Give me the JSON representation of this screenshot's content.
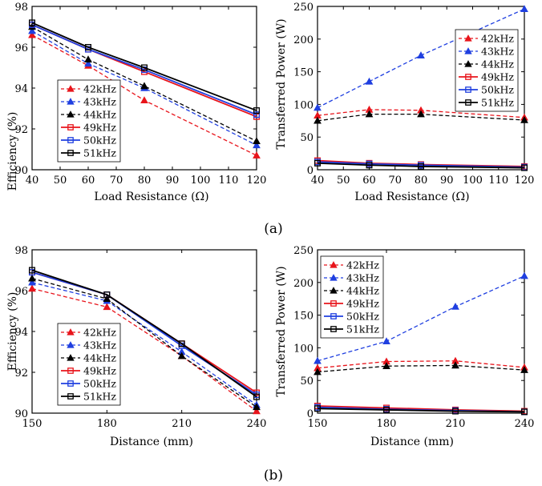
{
  "captions": [
    "(a)",
    "(b)"
  ],
  "chart_data": [
    {
      "type": "line",
      "xlabel": "Load Resistance (Ω)",
      "ylabel": "Efficiency (%)",
      "x": [
        40,
        60,
        80,
        120
      ],
      "xticks": [
        "40",
        "50",
        "60",
        "70",
        "80",
        "90",
        "100",
        "110",
        "120"
      ],
      "xlim": [
        40,
        120
      ],
      "yticks": [
        "90",
        "92",
        "94",
        "96",
        "98"
      ],
      "ylim": [
        90,
        98
      ],
      "legend_position": "bottom-left",
      "series": [
        {
          "name": "42kHz",
          "color": "#e8141b",
          "dashed": true,
          "marker": "triangle",
          "values": [
            96.6,
            95.1,
            93.4,
            90.7
          ]
        },
        {
          "name": "43kHz",
          "color": "#1f3fe0",
          "dashed": true,
          "marker": "triangle",
          "values": [
            96.8,
            95.2,
            94.0,
            91.2
          ]
        },
        {
          "name": "44kHz",
          "color": "#000000",
          "dashed": true,
          "marker": "triangle",
          "values": [
            97.0,
            95.4,
            94.1,
            91.4
          ]
        },
        {
          "name": "49kHz",
          "color": "#e8141b",
          "dashed": false,
          "marker": "square",
          "values": [
            97.1,
            95.9,
            94.8,
            92.6
          ]
        },
        {
          "name": "50kHz",
          "color": "#1f3fe0",
          "dashed": false,
          "marker": "square",
          "values": [
            97.1,
            95.9,
            94.9,
            92.7
          ]
        },
        {
          "name": "51kHz",
          "color": "#000000",
          "dashed": false,
          "marker": "square",
          "values": [
            97.2,
            96.0,
            95.0,
            92.9
          ]
        }
      ]
    },
    {
      "type": "line",
      "xlabel": "Load Resistance (Ω)",
      "ylabel": "Transferred Power (W)",
      "x": [
        40,
        60,
        80,
        120
      ],
      "xticks": [
        "40",
        "50",
        "60",
        "70",
        "80",
        "90",
        "100",
        "110",
        "120"
      ],
      "xlim": [
        40,
        120
      ],
      "yticks": [
        "0",
        "50",
        "100",
        "150",
        "200",
        "250"
      ],
      "ylim": [
        0,
        250
      ],
      "legend_position": "top-right",
      "series": [
        {
          "name": "42kHz",
          "color": "#e8141b",
          "dashed": true,
          "marker": "triangle",
          "values": [
            83,
            92,
            91,
            80
          ]
        },
        {
          "name": "43kHz",
          "color": "#1f3fe0",
          "dashed": true,
          "marker": "triangle",
          "values": [
            95,
            135,
            175,
            246
          ]
        },
        {
          "name": "44kHz",
          "color": "#000000",
          "dashed": true,
          "marker": "triangle",
          "values": [
            75,
            85,
            85,
            76
          ]
        },
        {
          "name": "49kHz",
          "color": "#e8141b",
          "dashed": false,
          "marker": "square",
          "values": [
            14,
            10,
            8,
            5
          ]
        },
        {
          "name": "50kHz",
          "color": "#1f3fe0",
          "dashed": false,
          "marker": "square",
          "values": [
            12,
            9,
            7,
            4
          ]
        },
        {
          "name": "51kHz",
          "color": "#000000",
          "dashed": false,
          "marker": "square",
          "values": [
            10,
            7,
            5,
            3
          ]
        }
      ]
    },
    {
      "type": "line",
      "xlabel": "Distance (mm)",
      "ylabel": "Efficiency (%)",
      "x": [
        150,
        180,
        210,
        240
      ],
      "xticks": [
        "150",
        "180",
        "210",
        "240"
      ],
      "xlim": [
        150,
        240
      ],
      "yticks": [
        "90",
        "92",
        "94",
        "96",
        "98"
      ],
      "ylim": [
        90,
        98
      ],
      "legend_position": "bottom-left",
      "series": [
        {
          "name": "42kHz",
          "color": "#e8141b",
          "dashed": true,
          "marker": "triangle",
          "values": [
            96.1,
            95.2,
            92.8,
            90.1
          ]
        },
        {
          "name": "43kHz",
          "color": "#1f3fe0",
          "dashed": true,
          "marker": "triangle",
          "values": [
            96.4,
            95.5,
            93.0,
            90.4
          ]
        },
        {
          "name": "44kHz",
          "color": "#000000",
          "dashed": true,
          "marker": "triangle",
          "values": [
            96.6,
            95.6,
            92.8,
            90.3
          ]
        },
        {
          "name": "49kHz",
          "color": "#e8141b",
          "dashed": false,
          "marker": "square",
          "values": [
            96.9,
            95.8,
            93.4,
            91.0
          ]
        },
        {
          "name": "50kHz",
          "color": "#1f3fe0",
          "dashed": false,
          "marker": "square",
          "values": [
            96.9,
            95.8,
            93.3,
            90.9
          ]
        },
        {
          "name": "51kHz",
          "color": "#000000",
          "dashed": false,
          "marker": "square",
          "values": [
            97.0,
            95.8,
            93.4,
            90.8
          ]
        }
      ]
    },
    {
      "type": "line",
      "xlabel": "Distance (mm)",
      "ylabel": "Transferred Power (W)",
      "x": [
        150,
        180,
        210,
        240
      ],
      "xticks": [
        "150",
        "180",
        "210",
        "240"
      ],
      "xlim": [
        150,
        240
      ],
      "yticks": [
        "0",
        "50",
        "100",
        "150",
        "200",
        "250"
      ],
      "ylim": [
        0,
        250
      ],
      "legend_position": "top-left",
      "series": [
        {
          "name": "42kHz",
          "color": "#e8141b",
          "dashed": true,
          "marker": "triangle",
          "values": [
            69,
            79,
            80,
            70
          ]
        },
        {
          "name": "43kHz",
          "color": "#1f3fe0",
          "dashed": true,
          "marker": "triangle",
          "values": [
            80,
            110,
            163,
            210
          ]
        },
        {
          "name": "44kHz",
          "color": "#000000",
          "dashed": true,
          "marker": "triangle",
          "values": [
            63,
            72,
            73,
            66
          ]
        },
        {
          "name": "49kHz",
          "color": "#e8141b",
          "dashed": false,
          "marker": "square",
          "values": [
            11,
            8,
            5,
            3
          ]
        },
        {
          "name": "50kHz",
          "color": "#1f3fe0",
          "dashed": false,
          "marker": "square",
          "values": [
            9,
            6,
            4,
            2
          ]
        },
        {
          "name": "51kHz",
          "color": "#000000",
          "dashed": false,
          "marker": "square",
          "values": [
            7,
            5,
            3,
            2
          ]
        }
      ]
    }
  ]
}
